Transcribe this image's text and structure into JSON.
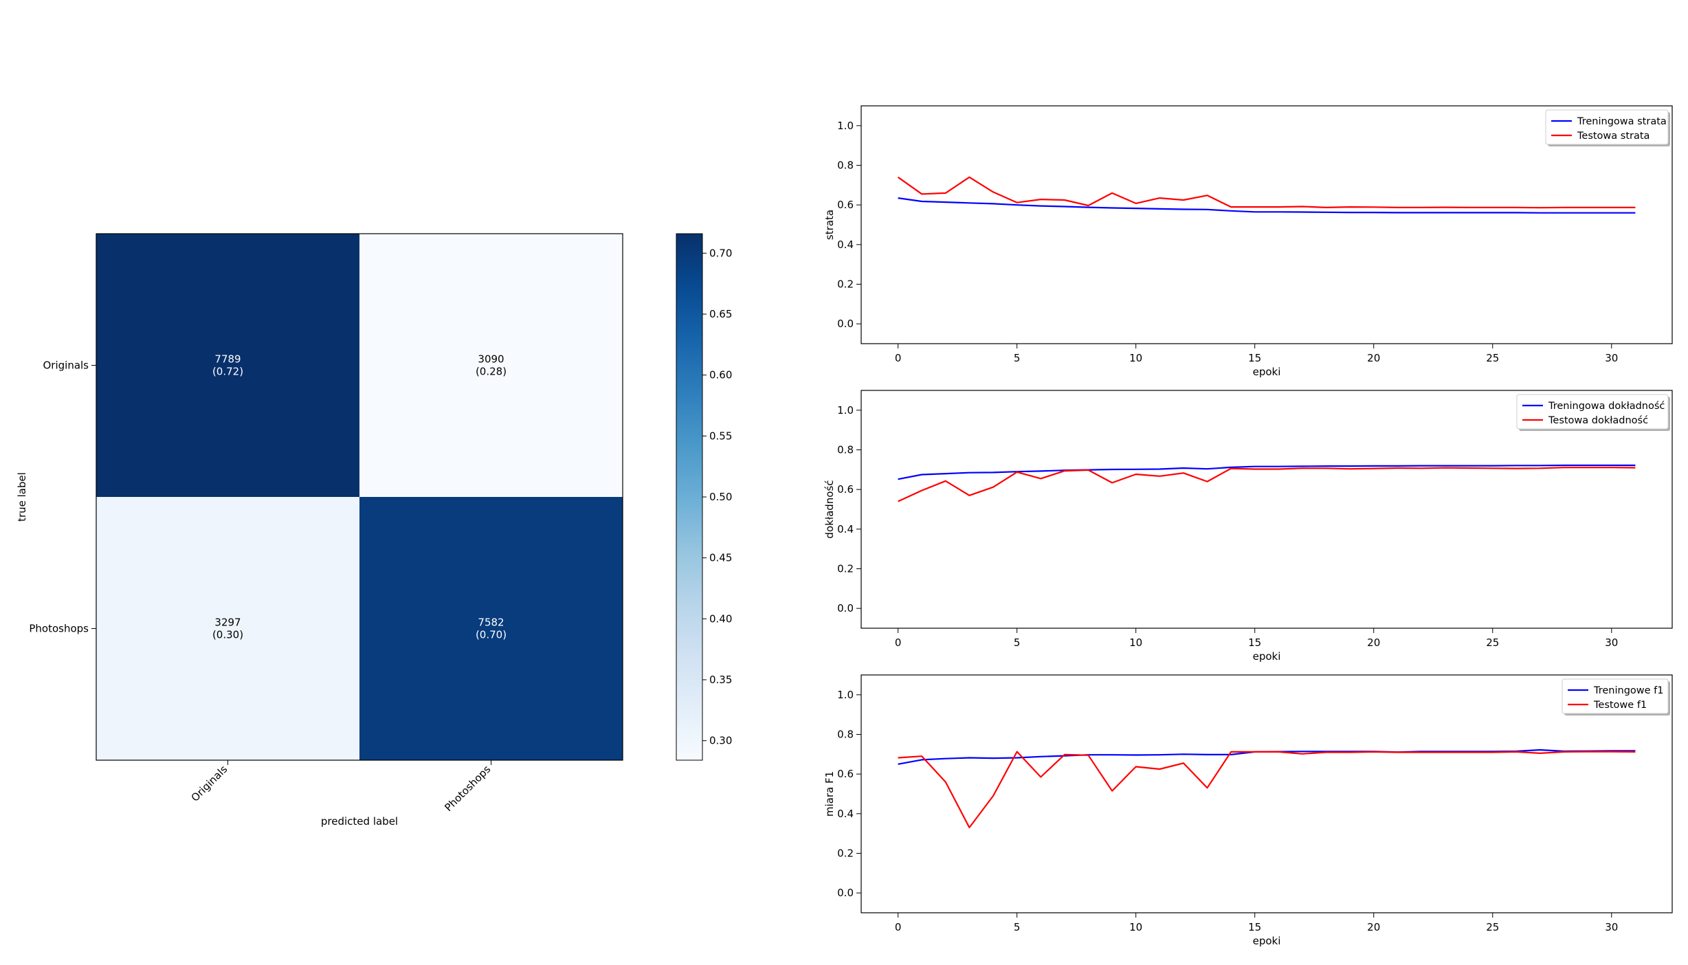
{
  "chart_data": [
    {
      "type": "heatmap",
      "title": "",
      "xlabel": "predicted label",
      "ylabel": "true label",
      "x_categories": [
        "Originals",
        "Photoshops"
      ],
      "y_categories": [
        "Originals",
        "Photoshops"
      ],
      "cells": [
        [
          {
            "count": "7789",
            "ratio": "(0.72)",
            "value": 0.716
          },
          {
            "count": "3090",
            "ratio": "(0.28)",
            "value": 0.284
          }
        ],
        [
          {
            "count": "3297",
            "ratio": "(0.30)",
            "value": 0.303
          },
          {
            "count": "7582",
            "ratio": "(0.70)",
            "value": 0.697
          }
        ]
      ],
      "colorbar": {
        "colormap": "Blues",
        "range": [
          0.284,
          0.716
        ],
        "ticks": [
          "0.30",
          "0.35",
          "0.40",
          "0.45",
          "0.50",
          "0.55",
          "0.60",
          "0.65",
          "0.70"
        ]
      }
    },
    {
      "type": "line",
      "title": "",
      "xlabel": "epoki",
      "ylabel": "strata",
      "xlim": [
        -1.55,
        32.55
      ],
      "ylim": [
        -0.1,
        1.1
      ],
      "xticks": [
        "0",
        "5",
        "10",
        "15",
        "20",
        "25",
        "30"
      ],
      "yticks": [
        "0.0",
        "0.2",
        "0.4",
        "0.6",
        "0.8",
        "1.0"
      ],
      "legend_position": "top-right",
      "series": [
        {
          "name": "Treningowa strata",
          "color": "#0000ff",
          "values": [
            0.635,
            0.618,
            0.614,
            0.61,
            0.606,
            0.6,
            0.595,
            0.592,
            0.588,
            0.585,
            0.583,
            0.58,
            0.578,
            0.577,
            0.57,
            0.565,
            0.565,
            0.564,
            0.563,
            0.562,
            0.562,
            0.561,
            0.561,
            0.561,
            0.561,
            0.561,
            0.561,
            0.56,
            0.56,
            0.56,
            0.56,
            0.56
          ]
        },
        {
          "name": "Testowa strata",
          "color": "#ff0000",
          "values": [
            0.74,
            0.655,
            0.66,
            0.74,
            0.665,
            0.612,
            0.628,
            0.625,
            0.597,
            0.66,
            0.608,
            0.635,
            0.625,
            0.648,
            0.59,
            0.59,
            0.59,
            0.592,
            0.587,
            0.59,
            0.589,
            0.587,
            0.587,
            0.588,
            0.587,
            0.587,
            0.587,
            0.586,
            0.587,
            0.587,
            0.587,
            0.587
          ]
        }
      ]
    },
    {
      "type": "line",
      "title": "",
      "xlabel": "epoki",
      "ylabel": "dokładność",
      "xlim": [
        -1.55,
        32.55
      ],
      "ylim": [
        -0.1,
        1.1
      ],
      "xticks": [
        "0",
        "5",
        "10",
        "15",
        "20",
        "25",
        "30"
      ],
      "yticks": [
        "0.0",
        "0.2",
        "0.4",
        "0.6",
        "0.8",
        "1.0"
      ],
      "legend_position": "top-right",
      "series": [
        {
          "name": "Treningowa dokładność",
          "color": "#0000ff",
          "values": [
            0.652,
            0.675,
            0.68,
            0.685,
            0.686,
            0.69,
            0.693,
            0.697,
            0.699,
            0.701,
            0.702,
            0.703,
            0.708,
            0.704,
            0.712,
            0.716,
            0.716,
            0.717,
            0.718,
            0.718,
            0.719,
            0.719,
            0.72,
            0.72,
            0.72,
            0.72,
            0.721,
            0.721,
            0.722,
            0.722,
            0.722,
            0.722
          ]
        },
        {
          "name": "Testowa dokładność",
          "color": "#ff0000",
          "values": [
            0.54,
            0.595,
            0.643,
            0.57,
            0.612,
            0.688,
            0.655,
            0.694,
            0.698,
            0.634,
            0.677,
            0.667,
            0.683,
            0.64,
            0.706,
            0.703,
            0.703,
            0.707,
            0.707,
            0.704,
            0.706,
            0.708,
            0.707,
            0.709,
            0.708,
            0.707,
            0.706,
            0.707,
            0.711,
            0.711,
            0.711,
            0.71
          ]
        }
      ]
    },
    {
      "type": "line",
      "title": "",
      "xlabel": "epoki",
      "ylabel": "miara F1",
      "xlim": [
        -1.55,
        32.55
      ],
      "ylim": [
        -0.1,
        1.1
      ],
      "xticks": [
        "0",
        "5",
        "10",
        "15",
        "20",
        "25",
        "30"
      ],
      "yticks": [
        "0.0",
        "0.2",
        "0.4",
        "0.6",
        "0.8",
        "1.0"
      ],
      "legend_position": "top-right",
      "series": [
        {
          "name": "Treningowe f1",
          "color": "#0000ff",
          "values": [
            0.65,
            0.672,
            0.678,
            0.682,
            0.68,
            0.682,
            0.688,
            0.692,
            0.697,
            0.697,
            0.696,
            0.697,
            0.7,
            0.698,
            0.698,
            0.712,
            0.713,
            0.714,
            0.714,
            0.714,
            0.714,
            0.711,
            0.714,
            0.714,
            0.714,
            0.714,
            0.715,
            0.722,
            0.715,
            0.716,
            0.717,
            0.717
          ]
        },
        {
          "name": "Testowe f1",
          "color": "#ff0000",
          "values": [
            0.682,
            0.69,
            0.56,
            0.33,
            0.49,
            0.713,
            0.585,
            0.698,
            0.695,
            0.515,
            0.637,
            0.625,
            0.655,
            0.53,
            0.712,
            0.712,
            0.712,
            0.702,
            0.71,
            0.71,
            0.712,
            0.71,
            0.71,
            0.71,
            0.71,
            0.71,
            0.712,
            0.705,
            0.712,
            0.713,
            0.713,
            0.712
          ]
        }
      ]
    }
  ]
}
